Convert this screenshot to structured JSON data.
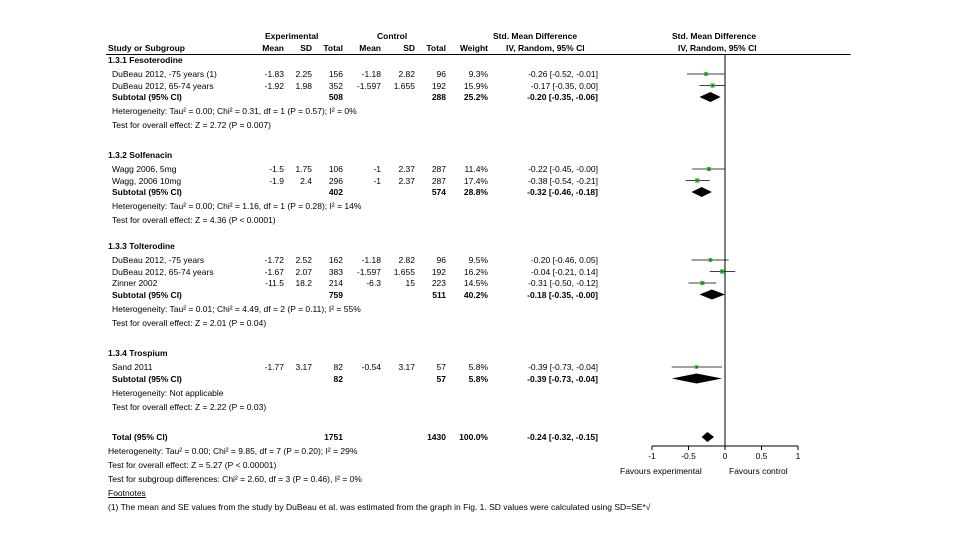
{
  "headers": {
    "experimental": "Experimental",
    "control": "Control",
    "smd_left": "Std. Mean Difference",
    "smd_right": "Std. Mean Difference",
    "study": "Study or Subgroup",
    "mean_e": "Mean",
    "sd_e": "SD",
    "total_e": "Total",
    "mean_c": "Mean",
    "sd_c": "SD",
    "total_c": "Total",
    "weight": "Weight",
    "ci_left": "IV, Random, 95% CI",
    "ci_right": "IV, Random, 95% CI"
  },
  "subgroups": [
    {
      "title": "1.3.1 Fesoterodine",
      "studies": [
        {
          "name": "DuBeau 2012, -75 years (1)",
          "me": "-1.83",
          "sde": "2.25",
          "ne": "156",
          "mc": "-1.18",
          "sdc": "2.82",
          "nc": "96",
          "w": "9.3%",
          "ci": "-0.26 [-0.52, -0.01]"
        },
        {
          "name": "DuBeau 2012, 65-74 years",
          "me": "-1.92",
          "sde": "1.98",
          "ne": "352",
          "mc": "-1.597",
          "sdc": "1.655",
          "nc": "192",
          "w": "15.9%",
          "ci": "-0.17 [-0.35, 0.00]"
        }
      ],
      "subtotal": {
        "label": "Subtotal (95% CI)",
        "ne": "508",
        "nc": "288",
        "w": "25.2%",
        "ci": "-0.20 [-0.35, -0.06]"
      },
      "heterogeneity": "Heterogeneity: Tau² = 0.00; Chi² = 0.31, df = 1 (P = 0.57); I² = 0%",
      "overall": "Test for overall effect: Z = 2.72 (P = 0.007)"
    },
    {
      "title": "1.3.2 Solfenacin",
      "studies": [
        {
          "name": "Wagg 2006, 5mg",
          "me": "-1.5",
          "sde": "1.75",
          "ne": "106",
          "mc": "-1",
          "sdc": "2.37",
          "nc": "287",
          "w": "11.4%",
          "ci": "-0.22 [-0.45, -0.00]"
        },
        {
          "name": "Wagg, 2006 10mg",
          "me": "-1.9",
          "sde": "2.4",
          "ne": "296",
          "mc": "-1",
          "sdc": "2.37",
          "nc": "287",
          "w": "17.4%",
          "ci": "-0.38 [-0.54, -0.21]"
        }
      ],
      "subtotal": {
        "label": "Subtotal (95% CI)",
        "ne": "402",
        "nc": "574",
        "w": "28.8%",
        "ci": "-0.32 [-0.46, -0.18]"
      },
      "heterogeneity": "Heterogeneity: Tau² = 0.00; Chi² = 1.16, df = 1 (P = 0.28); I² = 14%",
      "overall": "Test for overall effect: Z = 4.36 (P < 0.0001)"
    },
    {
      "title": "1.3.3 Tolterodine",
      "studies": [
        {
          "name": "DuBeau 2012, -75 years",
          "me": "-1.72",
          "sde": "2.52",
          "ne": "162",
          "mc": "-1.18",
          "sdc": "2.82",
          "nc": "96",
          "w": "9.5%",
          "ci": "-0.20 [-0.46, 0.05]"
        },
        {
          "name": "DuBeau 2012, 65-74 years",
          "me": "-1.67",
          "sde": "2.07",
          "ne": "383",
          "mc": "-1.597",
          "sdc": "1.655",
          "nc": "192",
          "w": "16.2%",
          "ci": "-0.04 [-0.21, 0.14]"
        },
        {
          "name": "Zinner 2002",
          "me": "-11.5",
          "sde": "18.2",
          "ne": "214",
          "mc": "-6.3",
          "sdc": "15",
          "nc": "223",
          "w": "14.5%",
          "ci": "-0.31 [-0.50, -0.12]"
        }
      ],
      "subtotal": {
        "label": "Subtotal (95% CI)",
        "ne": "759",
        "nc": "511",
        "w": "40.2%",
        "ci": "-0.18 [-0.35, -0.00]"
      },
      "heterogeneity": "Heterogeneity: Tau² = 0.01; Chi² = 4.49, df = 2 (P = 0.11); I² = 55%",
      "overall": "Test for overall effect: Z = 2.01 (P = 0.04)"
    },
    {
      "title": "1.3.4 Trospium",
      "studies": [
        {
          "name": "Sand 2011",
          "me": "-1.77",
          "sde": "3.17",
          "ne": "82",
          "mc": "-0.54",
          "sdc": "3.17",
          "nc": "57",
          "w": "5.8%",
          "ci": "-0.39 [-0.73, -0.04]"
        }
      ],
      "subtotal": {
        "label": "Subtotal (95% CI)",
        "ne": "82",
        "nc": "57",
        "w": "5.8%",
        "ci": "-0.39 [-0.73, -0.04]"
      },
      "heterogeneity": "Heterogeneity: Not applicable",
      "overall": "Test for overall effect: Z = 2.22 (P = 0.03)"
    }
  ],
  "total": {
    "label": "Total (95% CI)",
    "ne": "1751",
    "nc": "1430",
    "w": "100.0%",
    "ci": "-0.24 [-0.32, -0.15]"
  },
  "footer": {
    "heterogeneity": "Heterogeneity: Tau² = 0.00; Chi² = 9.85, df = 7 (P = 0.20); I² = 29%",
    "overall": "Test for overall effect: Z = 5.27 (P < 0.00001)",
    "subgroup_diff": "Test for subgroup differences: Chi² = 2.60, df = 3 (P = 0.46), I² = 0%",
    "footnotes_label": "Footnotes",
    "footnote_1": "(1) The mean and SE values from the study by DuBeau et al. was estimated from the graph in Fig. 1. SD values were calculated using SD=SE*√"
  },
  "axis": {
    "favours_left": "Favours experimental",
    "favours_right": "Favours control"
  },
  "colors": {
    "square": "#3cb33c",
    "diamond": "#000000"
  },
  "chart_data": {
    "type": "forest",
    "title": "Std. Mean Difference IV, Random, 95% CI",
    "xlabel": "",
    "ylabel": "",
    "xlim": [
      -1,
      1
    ],
    "ticks": [
      -1,
      -0.5,
      0,
      0.5,
      1
    ],
    "tick_labels": [
      "-1",
      "-0.5",
      "0",
      "0.5",
      "1"
    ],
    "points": [
      {
        "label": "DuBeau 2012, -75 years (1)",
        "est": -0.26,
        "lo": -0.52,
        "hi": -0.01,
        "weight": 9.3,
        "kind": "study"
      },
      {
        "label": "DuBeau 2012, 65-74 years",
        "est": -0.17,
        "lo": -0.35,
        "hi": 0.0,
        "weight": 15.9,
        "kind": "study"
      },
      {
        "label": "Subtotal 1.3.1",
        "est": -0.2,
        "lo": -0.35,
        "hi": -0.06,
        "weight": 25.2,
        "kind": "diamond"
      },
      {
        "label": "Wagg 2006, 5mg",
        "est": -0.22,
        "lo": -0.45,
        "hi": -0.0,
        "weight": 11.4,
        "kind": "study"
      },
      {
        "label": "Wagg, 2006 10mg",
        "est": -0.38,
        "lo": -0.54,
        "hi": -0.21,
        "weight": 17.4,
        "kind": "study"
      },
      {
        "label": "Subtotal 1.3.2",
        "est": -0.32,
        "lo": -0.46,
        "hi": -0.18,
        "weight": 28.8,
        "kind": "diamond"
      },
      {
        "label": "DuBeau 2012, -75 years",
        "est": -0.2,
        "lo": -0.46,
        "hi": 0.05,
        "weight": 9.5,
        "kind": "study"
      },
      {
        "label": "DuBeau 2012, 65-74 years",
        "est": -0.04,
        "lo": -0.21,
        "hi": 0.14,
        "weight": 16.2,
        "kind": "study"
      },
      {
        "label": "Zinner 2002",
        "est": -0.31,
        "lo": -0.5,
        "hi": -0.12,
        "weight": 14.5,
        "kind": "study"
      },
      {
        "label": "Subtotal 1.3.3",
        "est": -0.18,
        "lo": -0.35,
        "hi": -0.0,
        "weight": 40.2,
        "kind": "diamond"
      },
      {
        "label": "Sand 2011",
        "est": -0.39,
        "lo": -0.73,
        "hi": -0.04,
        "weight": 5.8,
        "kind": "study"
      },
      {
        "label": "Subtotal 1.3.4",
        "est": -0.39,
        "lo": -0.73,
        "hi": -0.04,
        "weight": 5.8,
        "kind": "diamond"
      },
      {
        "label": "Total (95% CI)",
        "est": -0.24,
        "lo": -0.32,
        "hi": -0.15,
        "weight": 100.0,
        "kind": "diamond"
      }
    ]
  }
}
